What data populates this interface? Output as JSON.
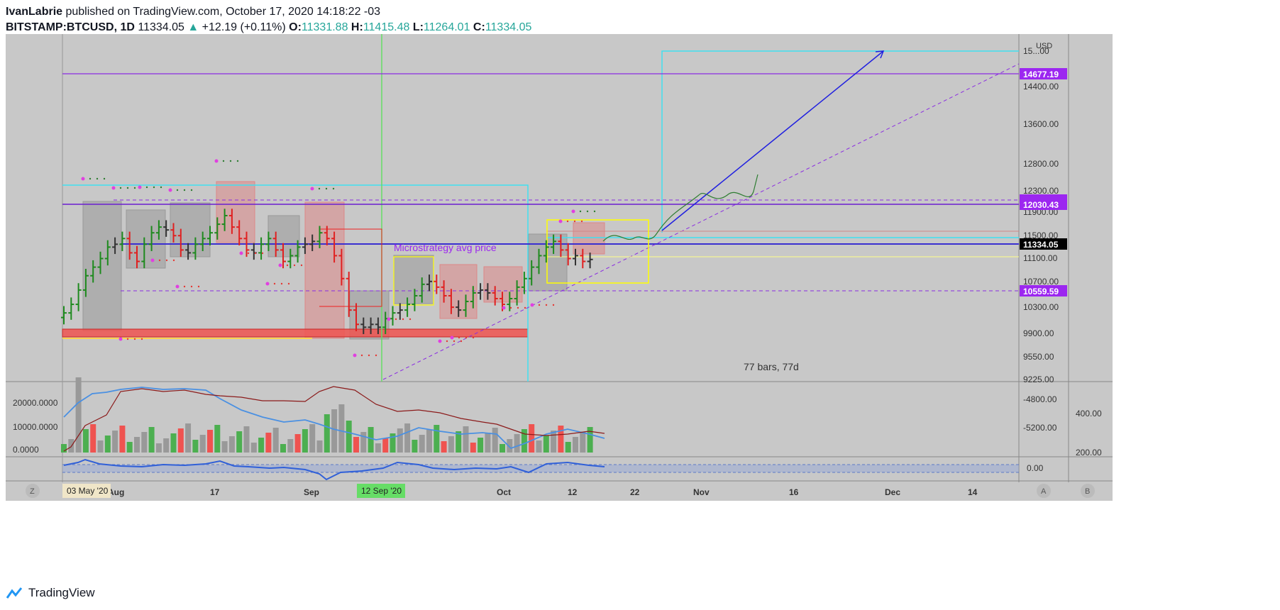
{
  "header": {
    "author": "IvanLabrie",
    "published": "published on TradingView.com, October 17, 2020 14:18:22 -03",
    "symbol": "BITSTAMP:BTCUSD, 1D",
    "last": "11334.05",
    "change": "+12.19 (+0.11%)",
    "o_label": "O:",
    "o": "11331.88",
    "h_label": "H:",
    "h": "11415.48",
    "l_label": "L:",
    "l": "11264.01",
    "c_label": "C:",
    "c": "11334.05"
  },
  "footer": {
    "brand": "TradingView"
  },
  "colors": {
    "bg": "#c8c8c8",
    "up": "#1e8a1e",
    "down": "#e02020",
    "neutral": "#333333",
    "purple": "#8a2be2",
    "cyan": "#40e0f0",
    "blue": "#2020e0",
    "yellow": "#ffff00",
    "volume_up": "#4caf50",
    "volume_down": "#ef5350",
    "volume_neutral": "#999999"
  },
  "chart_data": {
    "type": "line",
    "price_axis": {
      "unit": "USD",
      "ticks": [
        "15...00",
        "14400.00",
        "13600.00",
        "12800.00",
        "12300.00",
        "11900.00",
        "11500.00",
        "11100.00",
        "10700.00",
        "10300.00",
        "9900.00",
        "9550.00",
        "9225.00"
      ],
      "labels": [
        {
          "text": "14677.19",
          "color": "#9c27f0"
        },
        {
          "text": "12030.43",
          "color": "#9c27f0"
        },
        {
          "text": "11334.05",
          "color": "#000000"
        },
        {
          "text": "10559.59",
          "color": "#9c27f0"
        }
      ]
    },
    "time_axis": {
      "ticks": [
        "Aug",
        "17",
        "Sep",
        "Oct",
        "12",
        "22",
        "Nov",
        "16",
        "Dec",
        "14"
      ],
      "cursor_labels": [
        "03 May '20",
        "12 Sep '20"
      ]
    },
    "annotations": [
      "Microstrategy avg price",
      "77 bars, 77d"
    ],
    "candles_close": [
      10400,
      10550,
      10800,
      11050,
      11200,
      11350,
      11550,
      11600,
      11700,
      11450,
      11300,
      11600,
      11800,
      11900,
      11850,
      11750,
      11500,
      11450,
      11600,
      11700,
      11800,
      11950,
      12100,
      11900,
      11700,
      11500,
      11450,
      11600,
      11700,
      11500,
      11300,
      11400,
      11550,
      11600,
      11650,
      11800,
      11700,
      11400,
      11000,
      10450,
      10200,
      10150,
      10200,
      10150,
      10300,
      10400,
      10450,
      10550,
      10700,
      10900,
      10950,
      10850,
      10700,
      10500,
      10450,
      10600,
      10750,
      10800,
      10750,
      10650,
      10550,
      10650,
      10850,
      11000,
      11200,
      11400,
      11550,
      11650,
      11500,
      11350,
      11400,
      11300,
      11334
    ],
    "volume_panel": {
      "ticks": [
        "20000.0000",
        "10000.0000",
        "0.0000"
      ],
      "right_ticks": [
        "-4800.00",
        "-5200.00"
      ],
      "extra_ticks": [
        "400.00",
        "200.00"
      ]
    },
    "osc_panel": {
      "ticks": [
        "0.00"
      ]
    },
    "buttons": [
      "Z",
      "A",
      "B"
    ]
  }
}
